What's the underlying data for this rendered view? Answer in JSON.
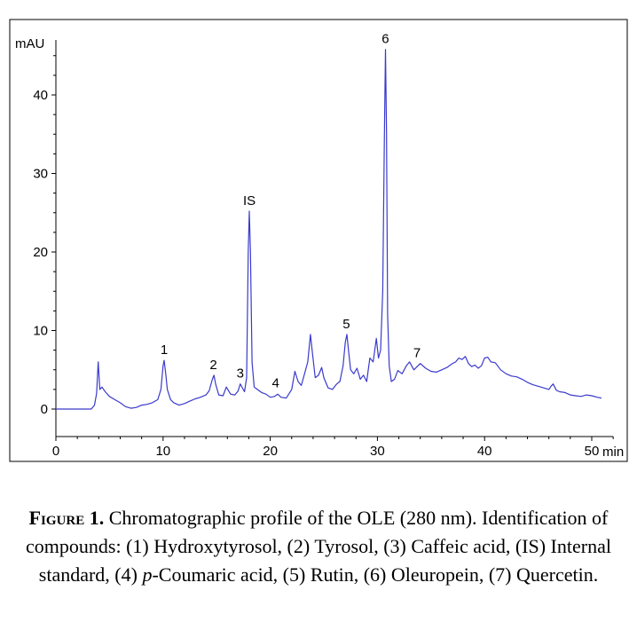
{
  "chart_data": {
    "type": "line",
    "title": "",
    "xlabel": "min",
    "ylabel": "mAU",
    "xlim": [
      0,
      52
    ],
    "ylim": [
      -3.5,
      47
    ],
    "grid": false,
    "x_ticks": [
      0,
      10,
      20,
      30,
      40,
      50
    ],
    "y_ticks": [
      0,
      10,
      20,
      30,
      40
    ],
    "series": [
      {
        "color": "#3a3acc",
        "x": [
          0,
          3.3,
          3.6,
          3.8,
          3.95,
          4.1,
          4.3,
          4.6,
          5.0,
          5.5,
          6.0,
          6.5,
          7.0,
          7.5,
          8.0,
          8.5,
          9.0,
          9.5,
          9.8,
          10.0,
          10.1,
          10.25,
          10.4,
          10.7,
          11.0,
          11.5,
          12.0,
          12.5,
          13.0,
          13.5,
          14.0,
          14.3,
          14.6,
          14.75,
          14.9,
          15.2,
          15.6,
          15.9,
          16.3,
          16.7,
          17.0,
          17.2,
          17.4,
          17.6,
          17.8,
          17.95,
          18.05,
          18.15,
          18.3,
          18.5,
          18.8,
          19.2,
          19.6,
          20.0,
          20.4,
          20.7,
          21.0,
          21.5,
          22.0,
          22.3,
          22.6,
          22.9,
          23.2,
          23.5,
          23.75,
          23.95,
          24.2,
          24.5,
          24.8,
          25.0,
          25.4,
          25.8,
          26.2,
          26.5,
          26.8,
          27.0,
          27.15,
          27.3,
          27.5,
          27.8,
          28.1,
          28.4,
          28.7,
          29.0,
          29.3,
          29.6,
          29.9,
          30.1,
          30.3,
          30.5,
          30.65,
          30.75,
          30.85,
          30.95,
          31.1,
          31.3,
          31.6,
          31.9,
          32.3,
          32.7,
          33.0,
          33.4,
          33.7,
          34.0,
          34.5,
          35.0,
          35.5,
          36.0,
          36.5,
          37.0,
          37.3,
          37.6,
          37.9,
          38.2,
          38.5,
          38.8,
          39.1,
          39.4,
          39.7,
          40.0,
          40.3,
          40.6,
          41.0,
          41.5,
          42.0,
          42.5,
          43.0,
          43.5,
          44.0,
          44.5,
          45.0,
          45.5,
          46.0,
          46.2,
          46.4,
          46.7,
          47.0,
          47.5,
          48.0,
          48.5,
          49.0,
          49.5,
          50.0,
          50.5,
          50.9
        ],
        "y": [
          0,
          0,
          0.5,
          2.0,
          6.0,
          2.5,
          2.8,
          2.2,
          1.6,
          1.2,
          0.8,
          0.3,
          0.1,
          0.2,
          0.5,
          0.6,
          0.8,
          1.2,
          2.5,
          5.5,
          6.2,
          4.5,
          2.5,
          1.2,
          0.8,
          0.5,
          0.7,
          1.0,
          1.3,
          1.5,
          1.8,
          2.3,
          3.8,
          4.3,
          3.2,
          1.8,
          1.7,
          2.8,
          1.9,
          1.8,
          2.3,
          3.2,
          2.7,
          2.2,
          4.0,
          20.0,
          25.2,
          20.0,
          6.0,
          2.8,
          2.5,
          2.1,
          1.9,
          1.5,
          1.6,
          1.9,
          1.5,
          1.4,
          2.5,
          4.8,
          3.5,
          3.0,
          4.5,
          6.0,
          9.5,
          7.0,
          4.0,
          4.3,
          5.3,
          4.0,
          2.7,
          2.5,
          3.2,
          3.5,
          5.5,
          8.5,
          9.5,
          7.5,
          5.0,
          4.5,
          5.2,
          3.8,
          4.3,
          3.5,
          6.5,
          6.0,
          9.0,
          6.5,
          7.5,
          15.0,
          35.0,
          45.8,
          35.0,
          12.0,
          5.5,
          3.5,
          3.8,
          4.9,
          4.5,
          5.5,
          6.0,
          5.0,
          5.4,
          5.8,
          5.2,
          4.8,
          4.7,
          5.0,
          5.3,
          5.8,
          6.0,
          6.5,
          6.3,
          6.7,
          5.8,
          5.4,
          5.6,
          5.2,
          5.5,
          6.5,
          6.6,
          6.0,
          5.9,
          5.0,
          4.5,
          4.2,
          4.1,
          3.8,
          3.4,
          3.1,
          2.9,
          2.7,
          2.5,
          2.9,
          3.2,
          2.4,
          2.2,
          2.1,
          1.8,
          1.7,
          1.6,
          1.8,
          1.7,
          1.5,
          1.4
        ]
      }
    ],
    "annotations": [
      {
        "text": "1",
        "x": 10.1,
        "y": 6.2
      },
      {
        "text": "2",
        "x": 14.7,
        "y": 4.3
      },
      {
        "text": "3",
        "x": 17.2,
        "y": 3.2
      },
      {
        "text": "IS",
        "x": 18.05,
        "y": 25.2
      },
      {
        "text": "4",
        "x": 20.5,
        "y": 2.0
      },
      {
        "text": "5",
        "x": 27.1,
        "y": 9.5
      },
      {
        "text": "6",
        "x": 30.75,
        "y": 45.8
      },
      {
        "text": "7",
        "x": 33.7,
        "y": 5.8
      }
    ]
  },
  "caption": {
    "label": "Figure 1.",
    "text": " Chromatographic profile of the OLE (280 nm). Identification of compounds: (1) Hydroxytyrosol, (2) Tyrosol, (3) Caffeic acid, (IS) Internal standard, (4) ",
    "italic": "p",
    "text2": "-Coumaric acid, (5) Rutin, (6) Oleuropein, (7) Quercetin."
  }
}
